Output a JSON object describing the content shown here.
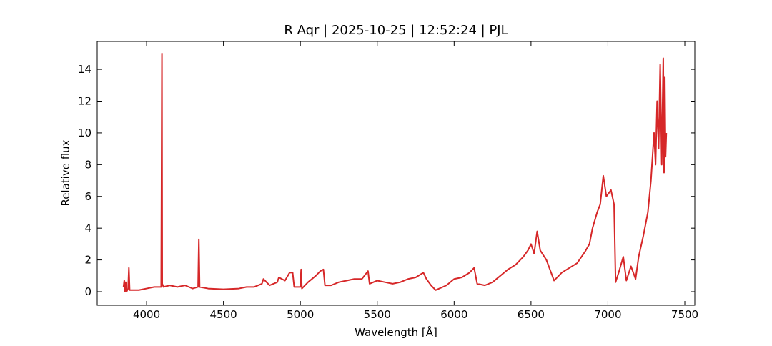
{
  "chart_data": {
    "type": "line",
    "title": "R Aqr | 2025-10-25 | 12:52:24 | PJL",
    "x_label": "Wavelength [Å]",
    "y_label": "Relative flux",
    "xlim": [
      3679,
      7565
    ],
    "ylim": [
      -0.855,
      15.76
    ],
    "xticks": [
      4000,
      4500,
      5000,
      5500,
      6000,
      6500,
      7000,
      7500
    ],
    "yticks": [
      0,
      2,
      4,
      6,
      8,
      10,
      12,
      14
    ],
    "series": [
      {
        "name": "R Aqr",
        "color": "#d62728",
        "x": [
          3850,
          3855,
          3860,
          3865,
          3870,
          3880,
          3885,
          3890,
          3950,
          4000,
          4050,
          4095,
          4100,
          4102,
          4110,
          4150,
          4200,
          4250,
          4300,
          4335,
          4340,
          4345,
          4400,
          4500,
          4600,
          4650,
          4700,
          4750,
          4760,
          4800,
          4850,
          4860,
          4900,
          4930,
          4950,
          4960,
          5000,
          5005,
          5010,
          5050,
          5100,
          5130,
          5150,
          5160,
          5200,
          5250,
          5300,
          5350,
          5400,
          5440,
          5450,
          5500,
          5550,
          5600,
          5650,
          5700,
          5750,
          5800,
          5820,
          5850,
          5880,
          5950,
          6000,
          6050,
          6100,
          6130,
          6150,
          6200,
          6250,
          6300,
          6350,
          6400,
          6450,
          6480,
          6500,
          6520,
          6540,
          6560,
          6600,
          6650,
          6700,
          6750,
          6800,
          6850,
          6880,
          6900,
          6930,
          6950,
          6970,
          6990,
          7020,
          7040,
          7050,
          7070,
          7100,
          7120,
          7150,
          7180,
          7200,
          7230,
          7260,
          7280,
          7300,
          7310,
          7320,
          7330,
          7340,
          7350,
          7360,
          7365,
          7370,
          7375,
          7380
        ],
        "values": [
          0.3,
          0.7,
          0.0,
          0.6,
          0.0,
          0.2,
          1.5,
          0.1,
          0.1,
          0.2,
          0.3,
          0.3,
          15.0,
          0.5,
          0.3,
          0.4,
          0.3,
          0.4,
          0.2,
          0.3,
          3.3,
          0.3,
          0.2,
          0.15,
          0.2,
          0.3,
          0.3,
          0.5,
          0.8,
          0.4,
          0.6,
          0.9,
          0.7,
          1.2,
          1.2,
          0.3,
          0.3,
          1.4,
          0.2,
          0.6,
          1.0,
          1.3,
          1.4,
          0.4,
          0.4,
          0.6,
          0.7,
          0.8,
          0.8,
          1.3,
          0.5,
          0.7,
          0.6,
          0.5,
          0.6,
          0.8,
          0.9,
          1.2,
          0.8,
          0.4,
          0.1,
          0.4,
          0.8,
          0.9,
          1.2,
          1.5,
          0.5,
          0.4,
          0.6,
          1.0,
          1.4,
          1.7,
          2.2,
          2.6,
          3.0,
          2.4,
          3.8,
          2.6,
          2.0,
          0.7,
          1.2,
          1.5,
          1.8,
          2.5,
          3.0,
          4.0,
          5.0,
          5.5,
          7.3,
          6.0,
          6.4,
          5.5,
          0.6,
          1.2,
          2.2,
          0.7,
          1.6,
          0.8,
          2.2,
          3.5,
          5.0,
          7.0,
          10.0,
          8.0,
          12.0,
          9.0,
          14.3,
          8.0,
          14.7,
          7.5,
          13.5,
          8.5,
          10.0
        ]
      }
    ]
  }
}
